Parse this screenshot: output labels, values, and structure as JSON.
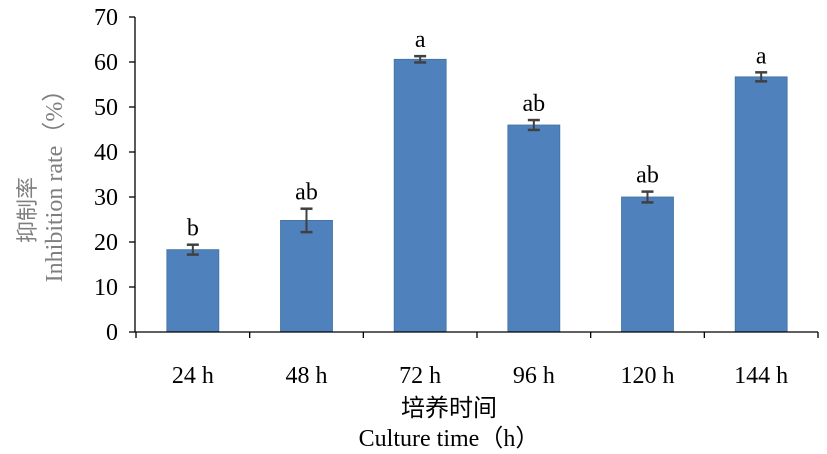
{
  "chart_data": {
    "type": "bar",
    "categories": [
      "24 h",
      "48 h",
      "72 h",
      "96 h",
      "120 h",
      "144 h"
    ],
    "values": [
      18.3,
      24.8,
      60.6,
      46.0,
      30.0,
      56.7
    ],
    "errors": [
      1.1,
      2.6,
      0.7,
      1.1,
      1.2,
      1.0
    ],
    "significance": [
      "b",
      "ab",
      "a",
      "ab",
      "ab",
      "a"
    ],
    "ylim": [
      0,
      70
    ],
    "yticks": [
      0,
      10,
      20,
      30,
      40,
      50,
      60,
      70
    ],
    "xlabel_cn": "培养时间",
    "xlabel_en": "Culture time（h）",
    "ylabel_cn": "抑制率",
    "ylabel_en": "Inhibition rate（%）",
    "grid": false,
    "bar_color": "#4f81bd",
    "error_color": "#404040"
  }
}
